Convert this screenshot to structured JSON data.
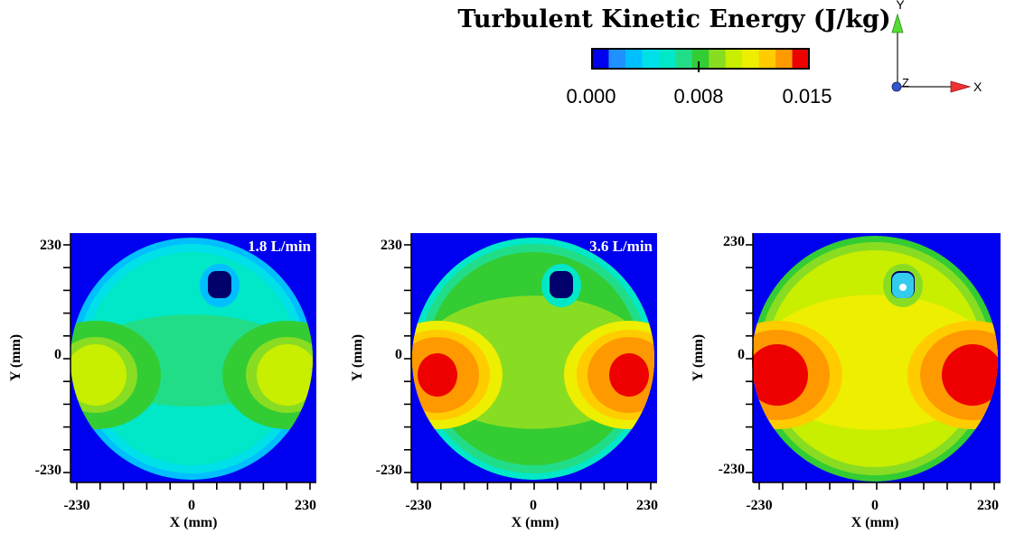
{
  "chart_data": {
    "type": "heatmap",
    "title": "Turbulent Kinetic Energy (J/kg)",
    "colorbar": {
      "min": 0.0,
      "max": 0.015,
      "tick_labels": [
        "0.000",
        "0.008",
        "0.015"
      ],
      "colors": [
        "#0000f0",
        "#1e90ff",
        "#00bfff",
        "#00e0e8",
        "#00e8c8",
        "#22dd88",
        "#33cc33",
        "#88dd22",
        "#c8ee00",
        "#eeee00",
        "#ffcc00",
        "#ff9900",
        "#ee0000"
      ]
    },
    "axes_triad": {
      "labels": [
        "Y",
        "Z",
        "X"
      ]
    },
    "panels": [
      {
        "flow_label": "1.8 L/min",
        "xlabel": "X (mm)",
        "ylabel": "Y (mm)",
        "xlim": [
          -230,
          230
        ],
        "ylim": [
          -230,
          230
        ],
        "xticks": [
          "-230",
          "0",
          "230"
        ],
        "yticks": [
          "230",
          "0",
          "-230"
        ],
        "field_levels": {
          "background": 0.0045,
          "center": 0.0065,
          "side_peak": 0.01
        }
      },
      {
        "flow_label": "3.6 L/min",
        "xlabel": "X (mm)",
        "ylabel": "Y (mm)",
        "xlim": [
          -230,
          230
        ],
        "ylim": [
          -230,
          230
        ],
        "xticks": [
          "-230",
          "0",
          "230"
        ],
        "yticks": [
          "230",
          "0",
          "-230"
        ],
        "field_levels": {
          "background": 0.0075,
          "center": 0.0085,
          "side_peak": 0.015
        }
      },
      {
        "flow_label": "",
        "xlabel": "X (mm)",
        "ylabel": "Y (mm)",
        "xlim": [
          -230,
          230
        ],
        "ylim": [
          -230,
          230
        ],
        "xticks": [
          "-230",
          "0",
          "230"
        ],
        "yticks": [
          "230",
          "0",
          "-230"
        ],
        "field_levels": {
          "background": 0.0105,
          "center": 0.0115,
          "side_peak": 0.015
        }
      }
    ]
  }
}
